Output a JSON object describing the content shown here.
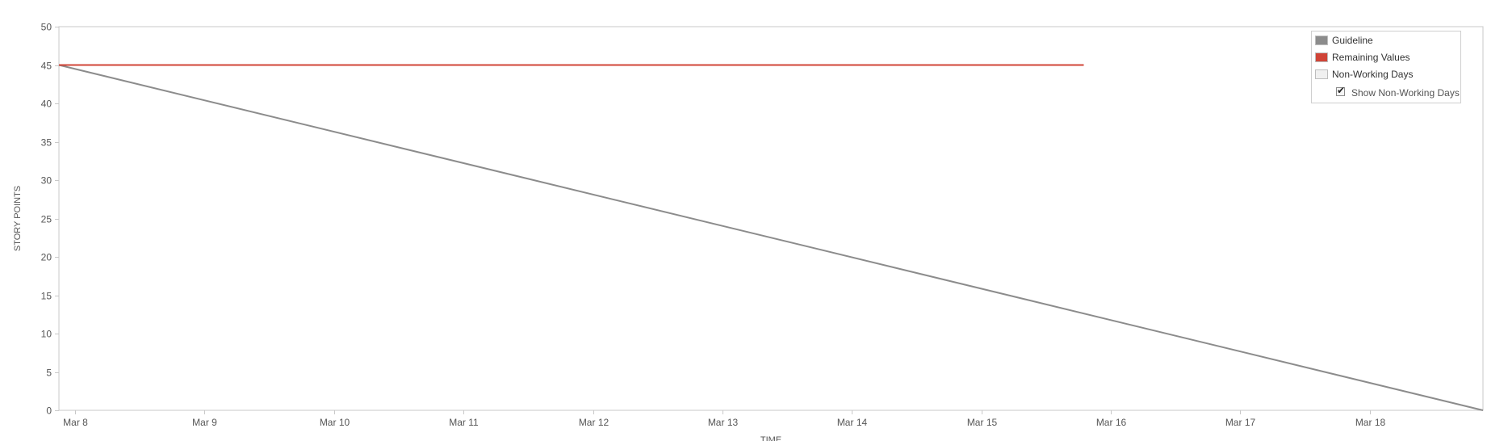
{
  "chart_data": {
    "type": "line",
    "xlabel": "TIME",
    "ylabel": "STORY POINTS",
    "ylim": [
      0,
      50
    ],
    "yticks": [
      "0",
      "5",
      "10",
      "15",
      "20",
      "25",
      "30",
      "35",
      "40",
      "45",
      "50"
    ],
    "xlim": [
      "Mar 7 21:00",
      "Mar 18 21:00"
    ],
    "xticks": [
      "Mar 8",
      "Mar 9",
      "Mar 10",
      "Mar 11",
      "Mar 12",
      "Mar 13",
      "Mar 14",
      "Mar 15",
      "Mar 16",
      "Mar 17",
      "Mar 18"
    ],
    "series": [
      {
        "name": "Guideline",
        "color": "#8c8c8c",
        "x": [
          "Mar 7 21:00",
          "Mar 18 21:00"
        ],
        "y": [
          45,
          0
        ]
      },
      {
        "name": "Remaining Values",
        "color": "#d04437",
        "x": [
          "Mar 7 21:00",
          "Mar 15 19:00"
        ],
        "y": [
          45,
          45
        ]
      }
    ],
    "legend": {
      "position": "top-right",
      "items": [
        {
          "label": "Guideline",
          "color": "#8c8c8c"
        },
        {
          "label": "Remaining Values",
          "color": "#d04437"
        },
        {
          "label": "Non-Working Days",
          "color": "#f0f0f0"
        }
      ],
      "toggle": {
        "label": "Show Non-Working Days",
        "checked": true
      }
    },
    "grid": false
  }
}
